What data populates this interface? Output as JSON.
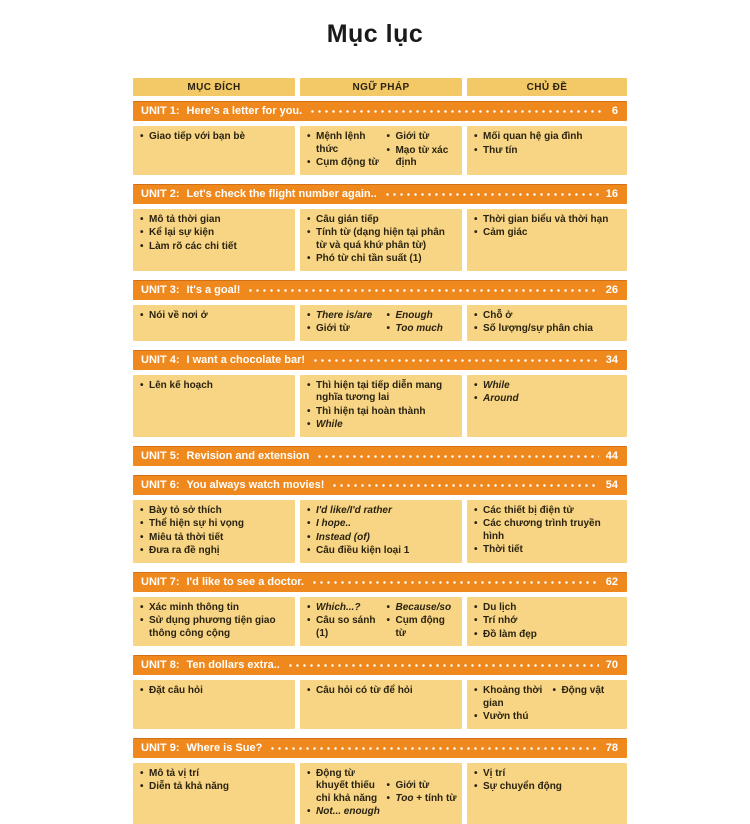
{
  "page": {
    "title": "Mục lục"
  },
  "icons": {
    "bullet": "•"
  },
  "colors": {
    "accent_orange": "#ef891e",
    "header_cell_bg": "#f3c967",
    "content_cell_bg": "#f7d584",
    "bar_text": "#ffffff",
    "body_text": "#2b2310",
    "page_bg": "#ffffff"
  },
  "table": {
    "headers": [
      "MỤC ĐÍCH",
      "NGỮ PHÁP",
      "CHỦ ĐỀ"
    ]
  },
  "units": [
    {
      "label": "UNIT 1:",
      "title": "Here's a letter for you.",
      "page": "6",
      "purpose": [
        "Giao tiếp với bạn bè"
      ],
      "grammar_left": [
        "Mệnh lệnh thức",
        "Cụm động từ"
      ],
      "grammar_right": [
        "Giới từ",
        "Mạo từ xác định"
      ],
      "topic": [
        "Mối quan hệ gia đình",
        "Thư tín"
      ]
    },
    {
      "label": "UNIT 2:",
      "title": "Let's check the flight number again..",
      "page": "16",
      "purpose": [
        "Mô tả thời gian",
        "Kể lại sự kiện",
        "Làm rõ các chi tiết"
      ],
      "grammar": [
        "Câu gián tiếp",
        "Tính từ (dạng hiện tại phân từ và quá khứ phân từ)",
        "Phó từ chỉ tần suất (1)"
      ],
      "topic": [
        "Thời gian biểu và thời hạn",
        "Cảm giác"
      ]
    },
    {
      "label": "UNIT 3:",
      "title": "It's a goal!",
      "page": "26",
      "purpose": [
        "Nói về nơi ở"
      ],
      "grammar_left": [
        "There is/are",
        "Giới từ"
      ],
      "grammar_right": [
        "Enough",
        "Too much"
      ],
      "topic": [
        "Chỗ ở",
        "Số lượng/sự phân chia"
      ]
    },
    {
      "label": "UNIT 4:",
      "title": "I want a chocolate bar!",
      "page": "34",
      "purpose": [
        "Lên kế hoạch"
      ],
      "grammar": [
        "Thì hiện tại tiếp diễn mang nghĩa tương lai",
        "Thì hiện tại hoàn thành",
        "While"
      ],
      "topic": [
        "While",
        "Around"
      ]
    },
    {
      "label": "UNIT 5:",
      "title": "Revision and extension",
      "page": "44"
    },
    {
      "label": "UNIT 6:",
      "title": "You always watch movies!",
      "page": "54",
      "purpose": [
        "Bày tỏ sở thích",
        "Thể hiện sự hi vọng",
        "Miêu tả thời tiết",
        "Đưa ra đề nghị"
      ],
      "grammar": [
        "I'd like/I'd rather",
        "I hope..",
        "Instead (of)",
        "Câu điều kiện loại 1"
      ],
      "topic": [
        "Các thiết bị điện tử",
        "Các chương trình truyền hình",
        "Thời tiết"
      ]
    },
    {
      "label": "UNIT 7:",
      "title": "I'd like to see a doctor.",
      "page": "62",
      "purpose": [
        "Xác minh thông tin",
        "Sử dụng phương tiện giao thông công cộng"
      ],
      "grammar_left": [
        "Which...?",
        "Câu so sánh (1)"
      ],
      "grammar_right": [
        "Because/so",
        "Cụm động từ"
      ],
      "topic": [
        "Du lịch",
        "Trí nhớ",
        "Đồ làm đẹp"
      ]
    },
    {
      "label": "UNIT 8:",
      "title": "Ten dollars extra..",
      "page": "70",
      "purpose": [
        "Đặt câu hỏi"
      ],
      "grammar": [
        "Câu hỏi có từ để hỏi"
      ],
      "topic_left": [
        "Khoảng thời gian",
        "Vườn thú"
      ],
      "topic_right": [
        "Động vật"
      ]
    },
    {
      "label": "UNIT 9:",
      "title": "Where is Sue?",
      "page": "78",
      "purpose": [
        "Mô tả vị trí",
        "Diễn tả khả năng"
      ],
      "grammar_left": [
        "Động từ khuyết thiếu chỉ khả năng",
        "Not... enough"
      ],
      "grammar_right_0": "Giới từ",
      "grammar_right_1_italic": "Too",
      "grammar_right_1_rest": " + tính từ",
      "topic": [
        "Vị trí",
        "Sự chuyển động"
      ]
    }
  ]
}
